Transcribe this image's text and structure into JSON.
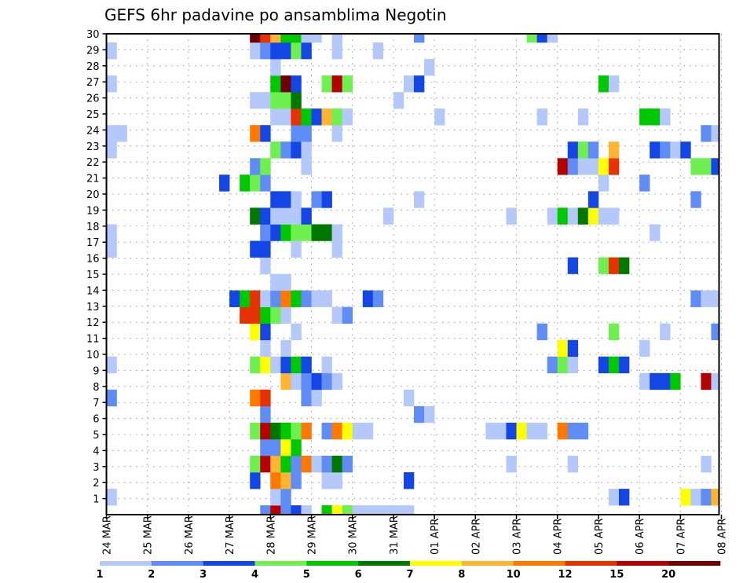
{
  "chart_data": {
    "type": "heatmap",
    "title": "GEFS 6hr padavine po ansamblima Negotin",
    "xlabel": "",
    "ylabel": "",
    "x_unit": "6-hour step from 24 MAR",
    "x_tick_labels": [
      "24 MAR",
      "25 MAR",
      "26 MAR",
      "27 MAR",
      "28 MAR",
      "29 MAR",
      "30 MAR",
      "31 MAR",
      "01 APR",
      "02 APR",
      "03 APR",
      "04 APR",
      "05 APR",
      "06 APR",
      "07 APR",
      "08 APR"
    ],
    "y_tick_labels": [
      "1",
      "2",
      "3",
      "4",
      "5",
      "6",
      "7",
      "8",
      "9",
      "10",
      "11",
      "12",
      "13",
      "14",
      "15",
      "16",
      "17",
      "18",
      "19",
      "20",
      "21",
      "22",
      "23",
      "24",
      "25",
      "26",
      "27",
      "28",
      "29",
      "30"
    ],
    "steps": 60,
    "members": 30,
    "grid": true,
    "legend": {
      "placement": "bottom",
      "levels": [
        "1",
        "2",
        "3",
        "4",
        "5",
        "6",
        "7",
        "8",
        "10",
        "12",
        "15",
        "20"
      ],
      "colors": [
        "#b4c8fa",
        "#5f8cf5",
        "#1446e6",
        "#6ef050",
        "#00c800",
        "#007800",
        "#ffff00",
        "#ffb432",
        "#ff7800",
        "#e63200",
        "#b40000",
        "#6e0000"
      ]
    },
    "cells": {
      "30": [
        [
          14,
          20
        ],
        [
          15,
          12
        ],
        [
          16,
          8
        ],
        [
          17,
          5
        ],
        [
          18,
          5
        ],
        [
          19,
          1
        ],
        [
          20,
          1
        ],
        [
          22,
          1
        ],
        [
          30,
          2
        ],
        [
          41,
          4
        ],
        [
          42,
          3
        ],
        [
          43,
          1
        ]
      ],
      "29": [
        [
          0,
          1
        ],
        [
          14,
          1
        ],
        [
          15,
          2
        ],
        [
          16,
          3
        ],
        [
          17,
          3
        ],
        [
          18,
          4
        ],
        [
          19,
          3
        ],
        [
          22,
          1
        ],
        [
          26,
          1
        ]
      ],
      "28": [
        [
          16,
          1
        ],
        [
          31,
          1
        ]
      ],
      "27": [
        [
          0,
          1
        ],
        [
          16,
          5
        ],
        [
          17,
          20
        ],
        [
          18,
          3
        ],
        [
          21,
          4
        ],
        [
          22,
          15
        ],
        [
          23,
          4
        ],
        [
          29,
          1
        ],
        [
          30,
          3
        ],
        [
          48,
          5
        ],
        [
          49,
          1
        ]
      ],
      "26": [
        [
          14,
          1
        ],
        [
          15,
          1
        ],
        [
          16,
          4
        ],
        [
          17,
          4
        ],
        [
          18,
          6
        ],
        [
          28,
          1
        ]
      ],
      "25": [
        [
          16,
          1
        ],
        [
          17,
          1
        ],
        [
          18,
          12
        ],
        [
          19,
          5
        ],
        [
          20,
          3
        ],
        [
          21,
          8
        ],
        [
          22,
          4
        ],
        [
          23,
          1
        ],
        [
          32,
          1
        ],
        [
          42,
          1
        ],
        [
          46,
          1
        ],
        [
          52,
          5
        ],
        [
          53,
          5
        ],
        [
          54,
          1
        ]
      ],
      "24": [
        [
          0,
          1
        ],
        [
          1,
          1
        ],
        [
          14,
          10
        ],
        [
          15,
          3
        ],
        [
          18,
          2
        ],
        [
          19,
          2
        ],
        [
          22,
          1
        ],
        [
          58,
          2
        ],
        [
          59,
          1
        ]
      ],
      "23": [
        [
          0,
          1
        ],
        [
          16,
          4
        ],
        [
          17,
          2
        ],
        [
          18,
          3
        ],
        [
          19,
          1
        ],
        [
          45,
          3
        ],
        [
          46,
          4
        ],
        [
          47,
          2
        ],
        [
          49,
          8
        ],
        [
          53,
          3
        ],
        [
          54,
          2
        ],
        [
          55,
          1
        ],
        [
          56,
          3
        ]
      ],
      "22": [
        [
          14,
          2
        ],
        [
          15,
          4
        ],
        [
          19,
          1
        ],
        [
          44,
          15
        ],
        [
          45,
          2
        ],
        [
          46,
          1
        ],
        [
          47,
          1
        ],
        [
          48,
          7
        ],
        [
          49,
          12
        ],
        [
          57,
          4
        ],
        [
          58,
          4
        ],
        [
          59,
          3
        ]
      ],
      "21": [
        [
          11,
          3
        ],
        [
          13,
          5
        ],
        [
          14,
          4
        ],
        [
          15,
          2
        ],
        [
          48,
          1
        ],
        [
          52,
          2
        ]
      ],
      "20": [
        [
          16,
          3
        ],
        [
          17,
          3
        ],
        [
          18,
          1
        ],
        [
          20,
          2
        ],
        [
          21,
          3
        ],
        [
          30,
          1
        ],
        [
          47,
          3
        ],
        [
          57,
          2
        ]
      ],
      "19": [
        [
          14,
          6
        ],
        [
          15,
          3
        ],
        [
          16,
          1
        ],
        [
          17,
          1
        ],
        [
          18,
          1
        ],
        [
          19,
          3
        ],
        [
          27,
          1
        ],
        [
          39,
          1
        ],
        [
          43,
          1
        ],
        [
          44,
          5
        ],
        [
          45,
          1
        ],
        [
          46,
          6
        ],
        [
          47,
          7
        ],
        [
          48,
          1
        ],
        [
          49,
          1
        ]
      ],
      "18": [
        [
          0,
          1
        ],
        [
          15,
          2
        ],
        [
          16,
          3
        ],
        [
          17,
          5
        ],
        [
          18,
          4
        ],
        [
          19,
          4
        ],
        [
          20,
          6
        ],
        [
          21,
          6
        ],
        [
          22,
          1
        ],
        [
          53,
          1
        ]
      ],
      "17": [
        [
          0,
          1
        ],
        [
          14,
          3
        ],
        [
          15,
          3
        ],
        [
          18,
          1
        ],
        [
          22,
          1
        ]
      ],
      "16": [
        [
          15,
          1
        ],
        [
          45,
          3
        ],
        [
          48,
          4
        ],
        [
          49,
          12
        ],
        [
          50,
          6
        ]
      ],
      "15": [
        [
          16,
          1
        ],
        [
          17,
          1
        ]
      ],
      "14": [
        [
          12,
          3
        ],
        [
          13,
          5
        ],
        [
          14,
          12
        ],
        [
          15,
          1
        ],
        [
          16,
          2
        ],
        [
          17,
          10
        ],
        [
          18,
          5
        ],
        [
          19,
          2
        ],
        [
          20,
          1
        ],
        [
          21,
          1
        ],
        [
          25,
          3
        ],
        [
          26,
          2
        ],
        [
          57,
          2
        ],
        [
          58,
          1
        ],
        [
          59,
          1
        ]
      ],
      "13": [
        [
          13,
          12
        ],
        [
          14,
          12
        ],
        [
          15,
          5
        ],
        [
          16,
          4
        ],
        [
          17,
          1
        ],
        [
          22,
          1
        ],
        [
          23,
          2
        ]
      ],
      "12": [
        [
          14,
          7
        ],
        [
          15,
          3
        ],
        [
          18,
          1
        ],
        [
          42,
          2
        ],
        [
          49,
          4
        ],
        [
          54,
          1
        ],
        [
          59,
          2
        ]
      ],
      "11": [
        [
          15,
          1
        ],
        [
          17,
          1
        ],
        [
          44,
          7
        ],
        [
          45,
          3
        ],
        [
          52,
          1
        ]
      ],
      "10": [
        [
          0,
          1
        ],
        [
          14,
          4
        ],
        [
          15,
          7
        ],
        [
          16,
          1
        ],
        [
          17,
          3
        ],
        [
          18,
          5
        ],
        [
          19,
          3
        ],
        [
          21,
          1
        ],
        [
          43,
          2
        ],
        [
          44,
          4
        ],
        [
          45,
          1
        ],
        [
          48,
          3
        ],
        [
          49,
          5
        ],
        [
          50,
          3
        ]
      ],
      "9": [
        [
          17,
          8
        ],
        [
          18,
          1
        ],
        [
          19,
          2
        ],
        [
          20,
          3
        ],
        [
          21,
          2
        ],
        [
          22,
          1
        ],
        [
          52,
          1
        ],
        [
          53,
          3
        ],
        [
          54,
          3
        ],
        [
          55,
          5
        ],
        [
          58,
          15
        ],
        [
          59,
          1
        ]
      ],
      "8": [
        [
          0,
          2
        ],
        [
          14,
          10
        ],
        [
          15,
          12
        ],
        [
          19,
          2
        ],
        [
          20,
          1
        ],
        [
          29,
          1
        ]
      ],
      "7": [
        [
          15,
          2
        ],
        [
          30,
          2
        ],
        [
          31,
          1
        ]
      ],
      "6": [
        [
          14,
          4
        ],
        [
          15,
          15
        ],
        [
          16,
          6
        ],
        [
          17,
          5
        ],
        [
          18,
          4
        ],
        [
          19,
          10
        ],
        [
          21,
          2
        ],
        [
          22,
          10
        ],
        [
          23,
          7
        ],
        [
          24,
          1
        ],
        [
          25,
          1
        ],
        [
          37,
          1
        ],
        [
          38,
          1
        ],
        [
          39,
          3
        ],
        [
          40,
          7
        ],
        [
          41,
          1
        ],
        [
          42,
          1
        ],
        [
          44,
          10
        ],
        [
          45,
          2
        ],
        [
          46,
          2
        ]
      ],
      "5": [
        [
          15,
          2
        ],
        [
          16,
          2
        ],
        [
          17,
          7
        ],
        [
          18,
          5
        ]
      ],
      "4": [
        [
          14,
          4
        ],
        [
          15,
          15
        ],
        [
          16,
          8
        ],
        [
          17,
          5
        ],
        [
          18,
          2
        ],
        [
          19,
          10
        ],
        [
          20,
          1
        ],
        [
          21,
          2
        ],
        [
          22,
          6
        ],
        [
          23,
          2
        ],
        [
          39,
          1
        ],
        [
          45,
          1
        ],
        [
          58,
          1
        ]
      ],
      "3": [
        [
          14,
          3
        ],
        [
          16,
          10
        ],
        [
          17,
          8
        ],
        [
          18,
          2
        ],
        [
          21,
          1
        ],
        [
          22,
          1
        ],
        [
          29,
          3
        ]
      ],
      "2": [
        [
          0,
          1
        ],
        [
          16,
          1
        ],
        [
          17,
          2
        ],
        [
          49,
          1
        ],
        [
          50,
          3
        ],
        [
          56,
          7
        ],
        [
          57,
          1
        ],
        [
          58,
          2
        ],
        [
          59,
          8
        ]
      ],
      "1": [
        [
          15,
          2
        ],
        [
          16,
          15
        ],
        [
          17,
          2
        ],
        [
          18,
          3
        ],
        [
          19,
          1
        ],
        [
          21,
          5
        ],
        [
          22,
          7
        ],
        [
          23,
          4
        ],
        [
          24,
          1
        ],
        [
          25,
          1
        ],
        [
          26,
          1
        ],
        [
          27,
          1
        ],
        [
          28,
          1
        ],
        [
          29,
          1
        ]
      ]
    }
  }
}
